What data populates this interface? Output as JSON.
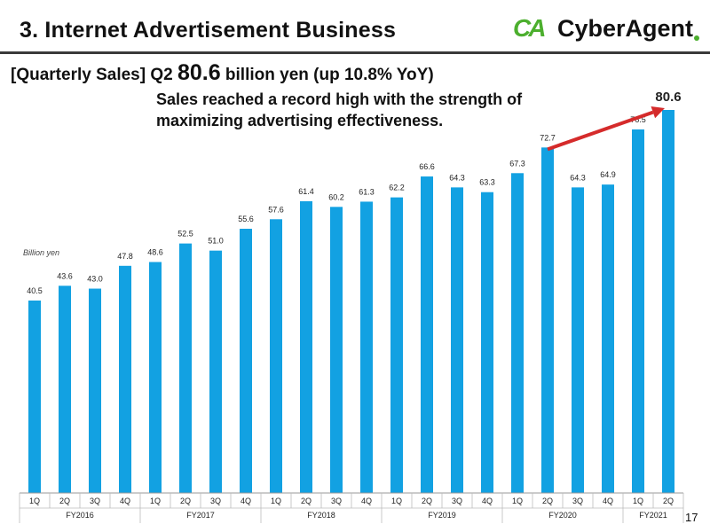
{
  "header": {
    "title": "3. Internet Advertisement Business",
    "logo_text": "CyberAgent",
    "logo_mark": "CA"
  },
  "headline": {
    "prefix": "[Quarterly Sales] Q2 ",
    "value": "80.6",
    "suffix": " billion yen (up 10.8% YoY)"
  },
  "subheadline": {
    "line1": "Sales reached a record high with the strength of",
    "line2": "maximizing advertising effectiveness."
  },
  "page_number": "17",
  "colors": {
    "bar": "#12a1e2",
    "arrow": "#d52b2b",
    "title_rule": "#3a3a3a",
    "logo_green": "#4caf2e"
  },
  "chart_data": {
    "type": "bar",
    "unit_label": "Billion yen",
    "categories": [
      "1Q",
      "2Q",
      "3Q",
      "4Q",
      "1Q",
      "2Q",
      "3Q",
      "4Q",
      "1Q",
      "2Q",
      "3Q",
      "4Q",
      "1Q",
      "2Q",
      "3Q",
      "4Q",
      "1Q",
      "2Q",
      "3Q",
      "4Q",
      "1Q",
      "2Q"
    ],
    "groups": [
      {
        "label": "FY2016",
        "count": 4
      },
      {
        "label": "FY2017",
        "count": 4
      },
      {
        "label": "FY2018",
        "count": 4
      },
      {
        "label": "FY2019",
        "count": 4
      },
      {
        "label": "FY2020",
        "count": 4
      },
      {
        "label": "FY2021",
        "count": 2
      }
    ],
    "values": [
      40.5,
      43.6,
      43.0,
      47.8,
      48.6,
      52.5,
      51.0,
      55.6,
      57.6,
      61.4,
      60.2,
      61.3,
      62.2,
      66.6,
      64.3,
      63.3,
      67.3,
      72.7,
      64.3,
      64.9,
      76.5,
      80.6
    ],
    "highlight": {
      "from_index": 17,
      "to_index": 21
    },
    "ylim": [
      0,
      80.6
    ]
  }
}
